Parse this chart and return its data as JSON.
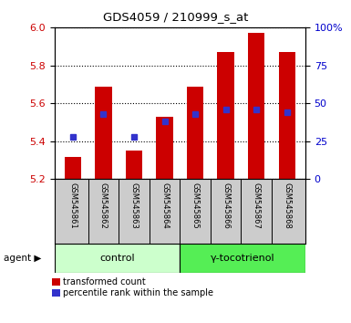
{
  "title": "GDS4059 / 210999_s_at",
  "samples": [
    "GSM545861",
    "GSM545862",
    "GSM545863",
    "GSM545864",
    "GSM545865",
    "GSM545866",
    "GSM545867",
    "GSM545868"
  ],
  "red_values": [
    5.32,
    5.69,
    5.35,
    5.53,
    5.69,
    5.87,
    5.97,
    5.87
  ],
  "blue_values_pct": [
    28,
    43,
    28,
    38,
    43,
    46,
    46,
    44
  ],
  "ymin": 5.2,
  "ymax": 6.0,
  "yticks": [
    5.2,
    5.4,
    5.6,
    5.8,
    6.0
  ],
  "right_yticks": [
    0,
    25,
    50,
    75,
    100
  ],
  "bar_color": "#cc0000",
  "blue_color": "#3333cc",
  "bar_width": 0.55,
  "control_label": "control",
  "treatment_label": "γ-tocotrienol",
  "agent_label": "agent",
  "legend_red": "transformed count",
  "legend_blue": "percentile rank within the sample",
  "control_color": "#ccffcc",
  "treatment_color": "#55ee55",
  "xlabel_color": "#cc0000",
  "right_axis_color": "#0000cc",
  "tick_area_bg": "#cccccc",
  "plot_bg": "#ffffff"
}
